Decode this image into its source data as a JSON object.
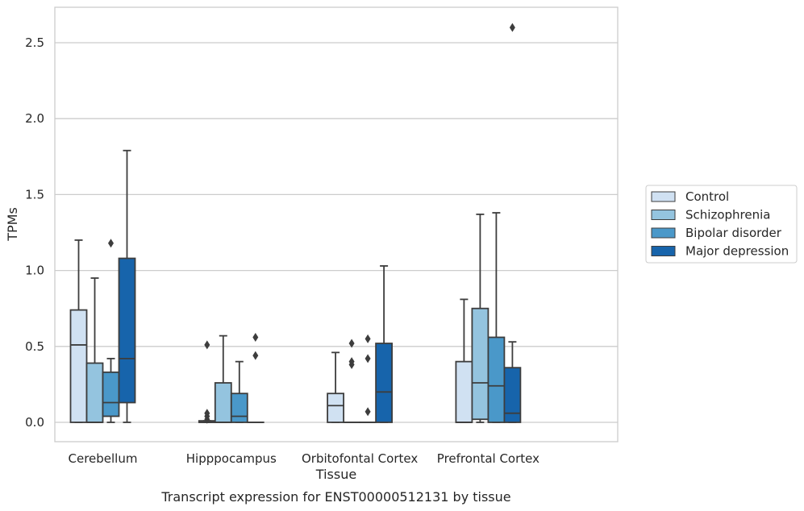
{
  "chart_data": {
    "type": "box",
    "xlabel": "Tissue",
    "ylabel": "TPMs",
    "caption": "Transcript expression for ENST00000512131 by tissue",
    "ylim": [
      -0.13,
      2.73
    ],
    "yticks": [
      0.0,
      0.5,
      1.0,
      1.5,
      2.0,
      2.5
    ],
    "ytick_labels": [
      "0.0",
      "0.5",
      "1.0",
      "1.5",
      "2.0",
      "2.5"
    ],
    "grid": "horizontal",
    "legend_position": "right",
    "categories": [
      "Cerebellum",
      "Hipppocampus",
      "Orbitofontal Cortex",
      "Prefrontal Cortex"
    ],
    "series": [
      {
        "name": "Control",
        "color": "#d0e1f2",
        "boxes": [
          {
            "whislo": 0.0,
            "q1": 0.0,
            "med": 0.51,
            "q3": 0.74,
            "whishi": 1.2,
            "fliers": []
          },
          {
            "whislo": 0.0,
            "q1": 0.0,
            "med": 0.0,
            "q3": 0.01,
            "whishi": 0.01,
            "fliers": [
              0.02,
              0.04,
              0.06,
              0.51
            ]
          },
          {
            "whislo": 0.0,
            "q1": 0.0,
            "med": 0.11,
            "q3": 0.19,
            "whishi": 0.46,
            "fliers": []
          },
          {
            "whislo": 0.0,
            "q1": 0.0,
            "med": 0.0,
            "q3": 0.4,
            "whishi": 0.81,
            "fliers": []
          }
        ]
      },
      {
        "name": "Schizophrenia",
        "color": "#94c4df",
        "boxes": [
          {
            "whislo": 0.0,
            "q1": 0.0,
            "med": 0.0,
            "q3": 0.39,
            "whishi": 0.95,
            "fliers": []
          },
          {
            "whislo": 0.0,
            "q1": 0.0,
            "med": 0.0,
            "q3": 0.26,
            "whishi": 0.57,
            "fliers": []
          },
          {
            "whislo": 0.0,
            "q1": 0.0,
            "med": 0.0,
            "q3": 0.0,
            "whishi": 0.0,
            "fliers": [
              0.38,
              0.4,
              0.52
            ]
          },
          {
            "whislo": 0.0,
            "q1": 0.02,
            "med": 0.26,
            "q3": 0.75,
            "whishi": 1.37,
            "fliers": []
          }
        ]
      },
      {
        "name": "Bipolar disorder",
        "color": "#4a98c9",
        "boxes": [
          {
            "whislo": 0.0,
            "q1": 0.04,
            "med": 0.13,
            "q3": 0.33,
            "whishi": 0.42,
            "fliers": [
              1.18
            ]
          },
          {
            "whislo": 0.0,
            "q1": 0.0,
            "med": 0.04,
            "q3": 0.19,
            "whishi": 0.4,
            "fliers": []
          },
          {
            "whislo": 0.0,
            "q1": 0.0,
            "med": 0.0,
            "q3": 0.0,
            "whishi": 0.0,
            "fliers": [
              0.07,
              0.42,
              0.55
            ]
          },
          {
            "whislo": 0.0,
            "q1": 0.0,
            "med": 0.24,
            "q3": 0.56,
            "whishi": 1.38,
            "fliers": []
          }
        ]
      },
      {
        "name": "Major depression",
        "color": "#1764ab",
        "boxes": [
          {
            "whislo": 0.0,
            "q1": 0.13,
            "med": 0.42,
            "q3": 1.08,
            "whishi": 1.79,
            "fliers": []
          },
          {
            "whislo": 0.0,
            "q1": 0.0,
            "med": 0.0,
            "q3": 0.0,
            "whishi": 0.0,
            "fliers": [
              0.44,
              0.56
            ]
          },
          {
            "whislo": 0.0,
            "q1": 0.0,
            "med": 0.2,
            "q3": 0.52,
            "whishi": 1.03,
            "fliers": []
          },
          {
            "whislo": 0.0,
            "q1": 0.0,
            "med": 0.06,
            "q3": 0.36,
            "whishi": 0.53,
            "fliers": [
              2.6
            ]
          }
        ]
      }
    ]
  }
}
